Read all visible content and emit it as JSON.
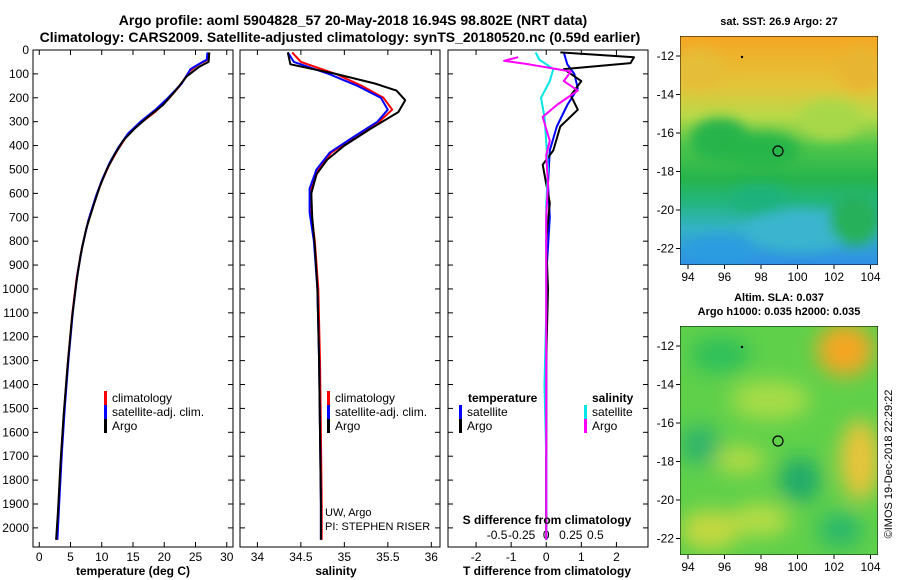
{
  "title": {
    "line1": "Argo profile: aoml 5904828_57 20-May-2018 16.94S 98.802E (NRT data)",
    "line2": "Climatology: CARS2009. Satellite-adjusted climatology: synTS_20180520.nc (0.59d earlier)"
  },
  "colors": {
    "climatology": "#ff0000",
    "satellite": "#0000ff",
    "argo": "#000000",
    "sal_satellite": "#00e5e5",
    "sal_argo": "#ff00ff"
  },
  "chart_data": [
    {
      "type": "line",
      "name": "temperature-panel",
      "xlabel": "temperature (deg C)",
      "ylabel": "",
      "xlim": [
        -1,
        31
      ],
      "ylim": [
        2080,
        0
      ],
      "x_ticks": [
        0,
        5,
        10,
        15,
        20,
        25,
        30
      ],
      "y_ticks": [
        0,
        100,
        200,
        300,
        400,
        500,
        600,
        700,
        800,
        900,
        1000,
        1100,
        1200,
        1300,
        1400,
        1500,
        1600,
        1700,
        1800,
        1900,
        2000
      ],
      "legend": [
        "climatology",
        "satellite-adj. clim.",
        "Argo"
      ],
      "series": [
        {
          "name": "climatology",
          "color": "#ff0000",
          "points": [
            [
              27.1,
              10
            ],
            [
              27.0,
              40
            ],
            [
              25.5,
              60
            ],
            [
              24,
              90
            ],
            [
              22.5,
              150
            ],
            [
              20.5,
              210
            ],
            [
              18.5,
              260
            ],
            [
              16.0,
              310
            ],
            [
              14.0,
              360
            ],
            [
              12.5,
              420
            ],
            [
              11.2,
              480
            ],
            [
              10.0,
              550
            ],
            [
              9.0,
              620
            ],
            [
              7.8,
              720
            ],
            [
              6.8,
              830
            ],
            [
              6.0,
              950
            ],
            [
              5.3,
              1100
            ],
            [
              4.6,
              1300
            ],
            [
              4.0,
              1500
            ],
            [
              3.5,
              1700
            ],
            [
              3.1,
              1900
            ],
            [
              2.8,
              2050
            ]
          ]
        },
        {
          "name": "satellite-adj. clim.",
          "color": "#0000ff",
          "points": [
            [
              26.9,
              10
            ],
            [
              26.8,
              40
            ],
            [
              25.8,
              55
            ],
            [
              24.2,
              80
            ],
            [
              22.8,
              140
            ],
            [
              20.6,
              200
            ],
            [
              18.6,
              250
            ],
            [
              16.2,
              300
            ],
            [
              14.2,
              350
            ],
            [
              12.6,
              410
            ],
            [
              11.3,
              470
            ],
            [
              10.1,
              540
            ],
            [
              9.1,
              610
            ],
            [
              7.9,
              710
            ],
            [
              6.9,
              820
            ],
            [
              6.1,
              940
            ],
            [
              5.4,
              1090
            ],
            [
              4.7,
              1290
            ],
            [
              4.1,
              1490
            ],
            [
              3.6,
              1690
            ],
            [
              3.2,
              1890
            ],
            [
              2.9,
              2050
            ]
          ]
        },
        {
          "name": "Argo",
          "color": "#000000",
          "points": [
            [
              27.2,
              10
            ],
            [
              27.1,
              50
            ],
            [
              25.6,
              70
            ],
            [
              23.6,
              110
            ],
            [
              21.8,
              170
            ],
            [
              19.8,
              230
            ],
            [
              17.4,
              280
            ],
            [
              15.2,
              330
            ],
            [
              13.4,
              380
            ],
            [
              12.0,
              440
            ],
            [
              10.8,
              500
            ],
            [
              9.7,
              570
            ],
            [
              8.7,
              650
            ],
            [
              7.5,
              750
            ],
            [
              6.6,
              860
            ],
            [
              5.9,
              980
            ],
            [
              5.2,
              1130
            ],
            [
              4.5,
              1330
            ],
            [
              3.9,
              1530
            ],
            [
              3.4,
              1730
            ],
            [
              3.0,
              1930
            ],
            [
              2.7,
              2050
            ]
          ]
        }
      ]
    },
    {
      "type": "line",
      "name": "salinity-panel",
      "xlabel": "salinity",
      "ylabel": "",
      "xlim": [
        33.8,
        36.1
      ],
      "ylim": [
        2080,
        0
      ],
      "x_ticks": [
        34,
        34.5,
        35,
        35.5,
        36
      ],
      "legend": [
        "climatology",
        "satellite-adj. clim.",
        "Argo"
      ],
      "annotations": [
        "UW, Argo",
        "PI: STEPHEN RISER"
      ],
      "series": [
        {
          "name": "climatology",
          "color": "#ff0000",
          "points": [
            [
              34.4,
              10
            ],
            [
              34.5,
              50
            ],
            [
              34.9,
              100
            ],
            [
              35.2,
              150
            ],
            [
              35.45,
              200
            ],
            [
              35.55,
              250
            ],
            [
              35.4,
              300
            ],
            [
              35.1,
              370
            ],
            [
              34.85,
              430
            ],
            [
              34.7,
              500
            ],
            [
              34.62,
              580
            ],
            [
              34.62,
              680
            ],
            [
              34.66,
              800
            ],
            [
              34.7,
              1000
            ],
            [
              34.72,
              1300
            ],
            [
              34.73,
              1600
            ],
            [
              34.74,
              1900
            ],
            [
              34.74,
              2050
            ]
          ]
        },
        {
          "name": "satellite-adj. clim.",
          "color": "#0000ff",
          "points": [
            [
              34.35,
              10
            ],
            [
              34.42,
              50
            ],
            [
              34.82,
              100
            ],
            [
              35.15,
              150
            ],
            [
              35.42,
              200
            ],
            [
              35.5,
              250
            ],
            [
              35.38,
              300
            ],
            [
              35.08,
              370
            ],
            [
              34.83,
              430
            ],
            [
              34.68,
              500
            ],
            [
              34.6,
              580
            ],
            [
              34.6,
              680
            ],
            [
              34.65,
              800
            ],
            [
              34.69,
              1000
            ],
            [
              34.71,
              1300
            ],
            [
              34.72,
              1600
            ],
            [
              34.73,
              1900
            ],
            [
              34.73,
              2050
            ]
          ]
        },
        {
          "name": "Argo",
          "color": "#000000",
          "points": [
            [
              34.35,
              10
            ],
            [
              34.38,
              60
            ],
            [
              34.9,
              100
            ],
            [
              35.35,
              140
            ],
            [
              35.6,
              170
            ],
            [
              35.7,
              210
            ],
            [
              35.62,
              260
            ],
            [
              35.3,
              330
            ],
            [
              35.0,
              400
            ],
            [
              34.8,
              460
            ],
            [
              34.68,
              520
            ],
            [
              34.62,
              600
            ],
            [
              34.63,
              700
            ],
            [
              34.66,
              820
            ],
            [
              34.69,
              1000
            ],
            [
              34.71,
              1300
            ],
            [
              34.72,
              1600
            ],
            [
              34.73,
              1900
            ],
            [
              34.73,
              2050
            ]
          ]
        }
      ]
    },
    {
      "type": "line",
      "name": "difference-panel",
      "xlabel": "T difference from climatology",
      "xlabel_top": "S difference from climatology",
      "ylabel": "",
      "xlim": [
        -2.8,
        2.9
      ],
      "ylim": [
        2080,
        0
      ],
      "x_ticks": [
        -2,
        -1,
        0,
        1,
        2
      ],
      "x2_tick_labels": [
        "-0.5",
        "-0.25",
        "0",
        "0.25",
        "0.5"
      ],
      "legend_temperature": [
        "satellite",
        "Argo"
      ],
      "legend_salinity": [
        "satellite",
        "Argo"
      ],
      "series": [
        {
          "name": "T satellite",
          "color": "#0000ff",
          "points": [
            [
              0.5,
              10
            ],
            [
              0.6,
              60
            ],
            [
              0.8,
              100
            ],
            [
              0.9,
              160
            ],
            [
              0.6,
              230
            ],
            [
              0.3,
              320
            ],
            [
              0.1,
              420
            ],
            [
              0.05,
              560
            ],
            [
              0.1,
              700
            ],
            [
              0.02,
              900
            ],
            [
              0.0,
              1200
            ],
            [
              0.0,
              1600
            ],
            [
              0.0,
              2050
            ]
          ]
        },
        {
          "name": "T Argo",
          "color": "#000000",
          "points": [
            [
              0.4,
              10
            ],
            [
              2.5,
              30
            ],
            [
              2.4,
              55
            ],
            [
              0.5,
              80
            ],
            [
              1.0,
              130
            ],
            [
              0.7,
              190
            ],
            [
              0.9,
              250
            ],
            [
              0.4,
              320
            ],
            [
              0.2,
              420
            ],
            [
              -0.1,
              480
            ],
            [
              0.0,
              560
            ],
            [
              0.1,
              640
            ],
            [
              0.0,
              800
            ],
            [
              0.05,
              1000
            ],
            [
              0.0,
              1300
            ],
            [
              0.0,
              1600
            ],
            [
              0.0,
              2050
            ]
          ]
        },
        {
          "name": "S satellite",
          "color": "#00e5e5",
          "points": [
            [
              -0.3,
              10
            ],
            [
              -0.2,
              40
            ],
            [
              0.2,
              80
            ],
            [
              0.1,
              130
            ],
            [
              -0.15,
              200
            ],
            [
              -0.05,
              280
            ],
            [
              0.0,
              380
            ],
            [
              0.05,
              500
            ],
            [
              0.0,
              650
            ],
            [
              0.0,
              850
            ],
            [
              0.0,
              1100
            ],
            [
              -0.05,
              1400
            ],
            [
              0.0,
              1700
            ],
            [
              0.0,
              2050
            ]
          ]
        },
        {
          "name": "S Argo",
          "color": "#ff00ff",
          "points": [
            [
              -0.8,
              30
            ],
            [
              -1.2,
              45
            ],
            [
              -0.5,
              60
            ],
            [
              0.7,
              90
            ],
            [
              0.5,
              130
            ],
            [
              0.9,
              170
            ],
            [
              0.3,
              230
            ],
            [
              -0.1,
              280
            ],
            [
              0.0,
              330
            ],
            [
              0.1,
              380
            ],
            [
              0.0,
              440
            ],
            [
              0.05,
              560
            ],
            [
              0.0,
              700
            ],
            [
              0.0,
              900
            ],
            [
              0.0,
              1200
            ],
            [
              0.0,
              1600
            ],
            [
              0.0,
              2050
            ]
          ]
        }
      ]
    }
  ],
  "y_axis_ticks": [
    "0",
    "100",
    "200",
    "300",
    "400",
    "500",
    "600",
    "700",
    "800",
    "900",
    "1000",
    "1100",
    "1200",
    "1300",
    "1400",
    "1500",
    "1600",
    "1700",
    "1800",
    "1900",
    "2000"
  ],
  "temp_x_ticks": [
    "0",
    "5",
    "10",
    "15",
    "20",
    "25",
    "30"
  ],
  "sal_x_ticks": [
    "34",
    "34.5",
    "35",
    "35.5",
    "36"
  ],
  "diff_x_ticks": [
    "-2",
    "-1",
    "0",
    "1",
    "2"
  ],
  "diff_x2_ticks": [
    "-0.5",
    "-0.25",
    "0",
    "0.25",
    "0.5"
  ],
  "legend": {
    "climatology": "climatology",
    "satellite_adj": "satellite-adj. clim.",
    "argo": "Argo",
    "temperature_header": "temperature",
    "salinity_header": "salinity",
    "satellite": "satellite"
  },
  "annotations": {
    "uw_argo": "UW, Argo",
    "pi": "PI: STEPHEN RISER"
  },
  "xlabels": {
    "temperature": "temperature (deg C)",
    "salinity": "salinity",
    "t_diff": "T difference from climatology",
    "s_diff": "S difference from climatology"
  },
  "sst_map": {
    "title": "sat. SST: 26.9  Argo: 27",
    "lat_ticks": [
      "-12",
      "-14",
      "-16",
      "-18",
      "-20",
      "-22"
    ],
    "lon_ticks": [
      "94",
      "96",
      "98",
      "100",
      "102",
      "104"
    ]
  },
  "sla_map": {
    "title1": "Altim. SLA: 0.037",
    "title2": "Argo h1000: 0.035 h2000: 0.035",
    "lat_ticks": [
      "-12",
      "-14",
      "-16",
      "-18",
      "-20",
      "-22"
    ],
    "lon_ticks": [
      "94",
      "96",
      "98",
      "100",
      "102",
      "104"
    ]
  },
  "footer": "©IMOS 19-Dec-2018 22:29:22"
}
